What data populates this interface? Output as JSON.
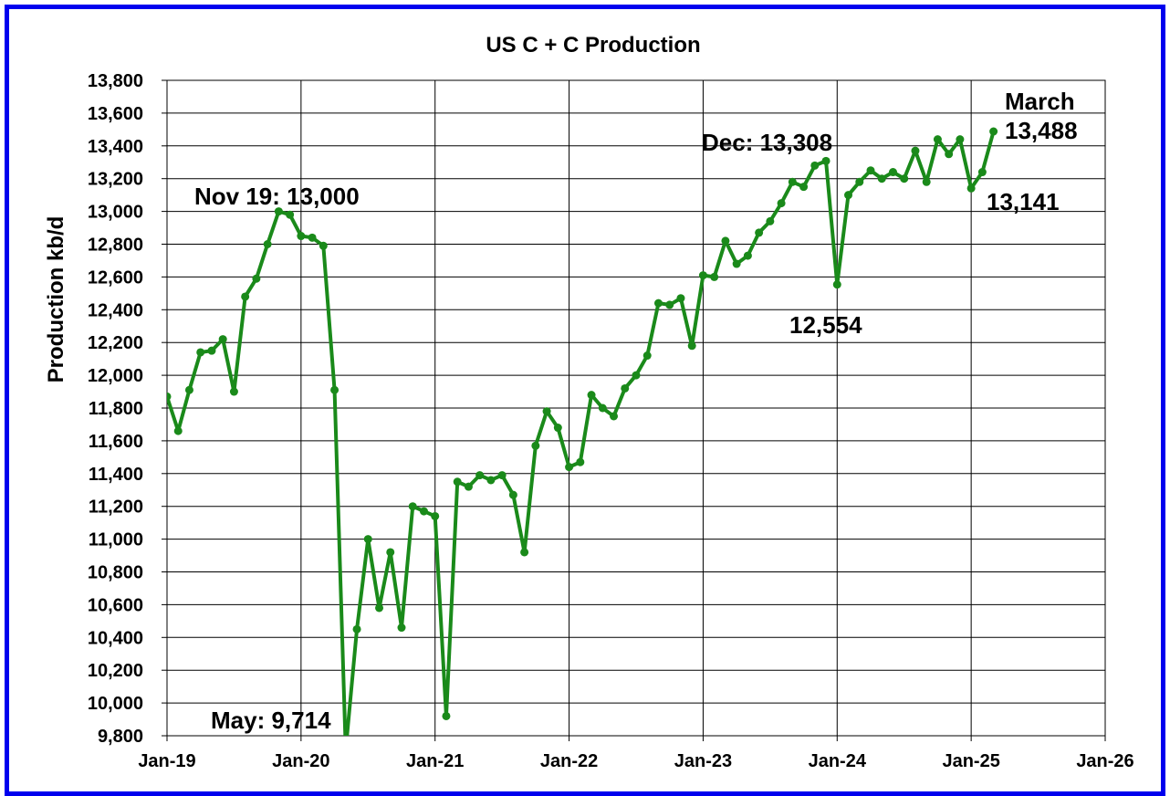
{
  "chart_data": {
    "type": "line",
    "title": "US C + C Production",
    "ylabel": "Production kb/d",
    "xlabel": "",
    "ylim": [
      9800,
      13800
    ],
    "grid": true,
    "colors": {
      "line": "#1a8a1a",
      "frame": "#0000ee",
      "grid": "#000000"
    },
    "y_ticks": [
      9800,
      10000,
      10200,
      10400,
      10600,
      10800,
      11000,
      11200,
      11400,
      11600,
      11800,
      12000,
      12200,
      12400,
      12600,
      12800,
      13000,
      13200,
      13400,
      13600,
      13800
    ],
    "y_tick_labels": [
      "9,800",
      "10,000",
      "10,200",
      "10,400",
      "10,600",
      "10,800",
      "11,000",
      "11,200",
      "11,400",
      "11,600",
      "11,800",
      "12,000",
      "12,200",
      "12,400",
      "12,600",
      "12,800",
      "13,000",
      "13,200",
      "13,400",
      "13,600",
      "13,800"
    ],
    "x_tick_labels": [
      "Jan-19",
      "Jan-20",
      "Jan-21",
      "Jan-22",
      "Jan-23",
      "Jan-24",
      "Jan-25",
      "Jan-26"
    ],
    "x_start": "Jan-19",
    "x_end": "Jan-26",
    "series": [
      {
        "x": [
          "Jan-19",
          "Feb-19",
          "Mar-19",
          "Apr-19",
          "May-19",
          "Jun-19",
          "Jul-19",
          "Aug-19",
          "Sep-19",
          "Oct-19",
          "Nov-19",
          "Dec-19",
          "Jan-20",
          "Feb-20",
          "Mar-20",
          "Apr-20",
          "May-20",
          "Jun-20",
          "Jul-20",
          "Aug-20",
          "Sep-20",
          "Oct-20",
          "Nov-20",
          "Dec-20",
          "Jan-21",
          "Feb-21",
          "Mar-21",
          "Apr-21",
          "May-21",
          "Jun-21",
          "Jul-21",
          "Aug-21",
          "Sep-21",
          "Oct-21",
          "Nov-21",
          "Dec-21",
          "Jan-22",
          "Feb-22",
          "Mar-22",
          "Apr-22",
          "May-22",
          "Jun-22",
          "Jul-22",
          "Aug-22",
          "Sep-22",
          "Oct-22",
          "Nov-22",
          "Dec-22",
          "Jan-23",
          "Feb-23",
          "Mar-23",
          "Apr-23",
          "May-23",
          "Jun-23",
          "Jul-23",
          "Aug-23",
          "Sep-23",
          "Oct-23",
          "Nov-23",
          "Dec-23",
          "Jan-24",
          "Feb-24",
          "Mar-24",
          "Apr-24",
          "May-24",
          "Jun-24",
          "Jul-24",
          "Aug-24",
          "Sep-24",
          "Oct-24",
          "Nov-24",
          "Dec-24",
          "Jan-25",
          "Feb-25",
          "Mar-25"
        ],
        "values": [
          11870,
          11660,
          11910,
          12140,
          12150,
          12220,
          11900,
          12480,
          12590,
          12800,
          13000,
          12980,
          12850,
          12840,
          12790,
          11910,
          9714,
          10450,
          11000,
          10580,
          10920,
          10460,
          11200,
          11170,
          11140,
          9920,
          11350,
          11320,
          11390,
          11360,
          11390,
          11270,
          10920,
          11570,
          11780,
          11680,
          11440,
          11470,
          11880,
          11800,
          11750,
          11920,
          12000,
          12120,
          12440,
          12430,
          12470,
          12180,
          12610,
          12600,
          12820,
          12680,
          12730,
          12870,
          12940,
          13050,
          13180,
          13150,
          13280,
          13308,
          12554,
          13100,
          13180,
          13250,
          13200,
          13240,
          13200,
          13370,
          13180,
          13440,
          13350,
          13440,
          13141,
          13240,
          13488
        ]
      }
    ],
    "annotations": [
      {
        "text": "Nov 19: 13,000"
      },
      {
        "text": "May: 9,714"
      },
      {
        "text": "Dec: 13,308"
      },
      {
        "text": "12,554"
      },
      {
        "text": "March"
      },
      {
        "text": "13,488"
      },
      {
        "text": "13,141"
      }
    ]
  }
}
